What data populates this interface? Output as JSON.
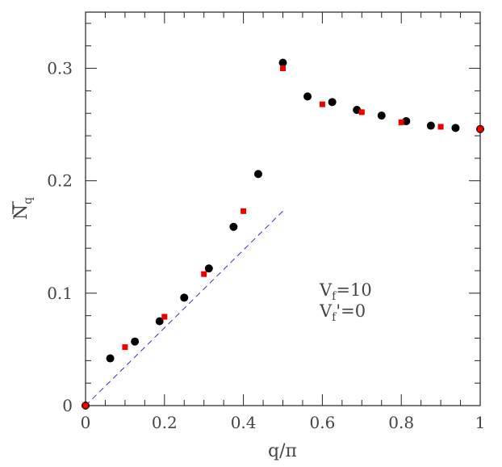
{
  "chart_data": {
    "type": "scatter",
    "xlim": [
      0,
      1
    ],
    "ylim": [
      0,
      0.35
    ],
    "xticks": [
      0,
      0.2,
      0.4,
      0.6,
      0.8,
      1
    ],
    "xtick_labels": [
      "0",
      "0.2",
      "0.4",
      "0.6",
      "0.8",
      "1"
    ],
    "yticks": [
      0,
      0.1,
      0.2,
      0.3
    ],
    "ytick_labels": [
      "0",
      "0.1",
      "0.2",
      "0.3"
    ],
    "xlabel": "q/π",
    "ylabel": {
      "main": "N",
      "sub": "q"
    },
    "grid": false,
    "series": [
      {
        "marker": "circle",
        "color": "#000000",
        "x": [
          0,
          0.0625,
          0.125,
          0.1875,
          0.25,
          0.3125,
          0.375,
          0.4375,
          0.5,
          0.5625,
          0.625,
          0.6875,
          0.75,
          0.8125,
          0.875,
          0.9375,
          1.0
        ],
        "y": [
          0.0,
          0.042,
          0.057,
          0.075,
          0.096,
          0.122,
          0.159,
          0.206,
          0.305,
          0.275,
          0.27,
          0.263,
          0.258,
          0.253,
          0.249,
          0.247,
          0.246
        ]
      },
      {
        "marker": "square",
        "color": "#ee0000",
        "x": [
          0,
          0.1,
          0.2,
          0.3,
          0.4,
          0.5,
          0.6,
          0.7,
          0.8,
          0.9,
          1.0
        ],
        "y": [
          0.0,
          0.052,
          0.079,
          0.117,
          0.173,
          0.3,
          0.268,
          0.261,
          0.252,
          0.248,
          0.246
        ]
      },
      {
        "marker": "dashed-line",
        "color": "#3030dd",
        "x": [
          0,
          0.5
        ],
        "y": [
          0,
          0.173
        ]
      }
    ],
    "annotation": {
      "line1_main": "V",
      "line1_sub": "f",
      "line1_rest": "=10",
      "line2_main": "V",
      "line2_sub": "f",
      "line2_rest": "'=0"
    }
  }
}
